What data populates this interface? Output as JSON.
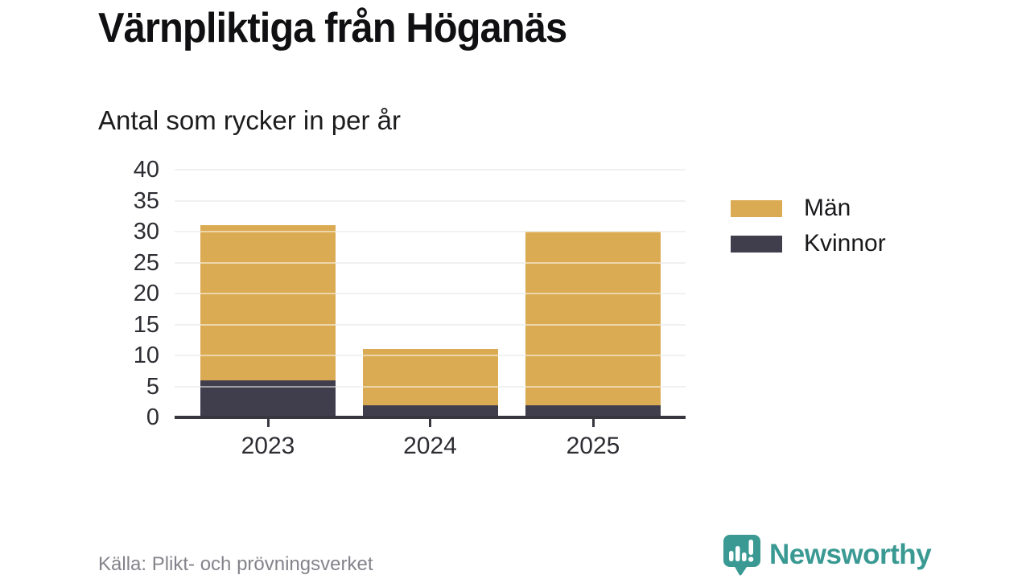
{
  "header": {
    "title": "Värnpliktiga från Höganäs",
    "subtitle": "Antal som rycker in per år"
  },
  "footer": {
    "source": "Källa: Plikt- och prövningsverket",
    "brand": "Newsworthy"
  },
  "colors": {
    "men_gold": "#dbab54",
    "women_navy": "#403e4d",
    "axis": "#38363f",
    "gridline": "#e3e3e3",
    "brand_teal": "#3a9a93",
    "muted_text": "#83838b"
  },
  "chart_data": {
    "type": "bar",
    "stacked": true,
    "title": "Värnpliktiga från Höganäs",
    "subtitle": "Antal som rycker in per år",
    "categories": [
      "2023",
      "2024",
      "2025"
    ],
    "series": [
      {
        "name": "Män",
        "color": "#dbab54",
        "values": [
          25,
          9,
          28
        ]
      },
      {
        "name": "Kvinnor",
        "color": "#403e4d",
        "values": [
          6,
          2,
          2
        ]
      }
    ],
    "stack_order_bottom_to_top": [
      "Kvinnor",
      "Män"
    ],
    "stack_totals": [
      31,
      11,
      30
    ],
    "xlabel": "",
    "ylabel": "",
    "ylim": [
      0,
      40
    ],
    "yticks": [
      0,
      5,
      10,
      15,
      20,
      25,
      30,
      35,
      40
    ],
    "grid": "horizontal",
    "legend_position": "right"
  }
}
